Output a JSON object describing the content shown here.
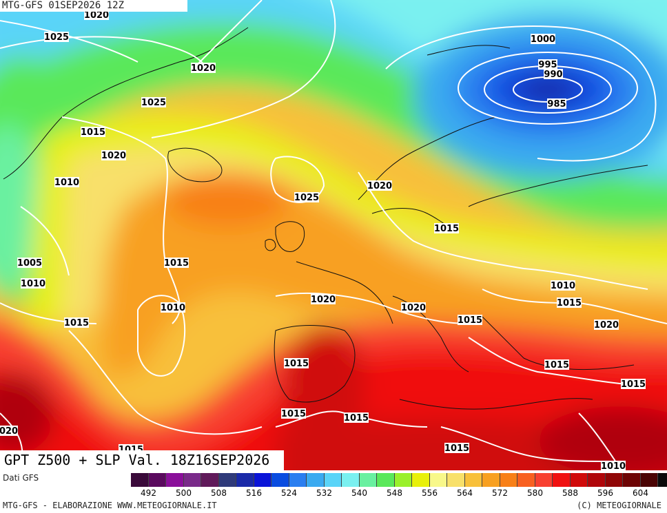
{
  "header": {
    "run_label": "MTG-GFS 01SEP2026 12Z"
  },
  "title": {
    "text": "GPT Z500 + SLP Val. 18Z16SEP2026"
  },
  "footer": {
    "source": "Dati GFS",
    "credit_left": "MTG-GFS - ELABORAZIONE WWW.METEOGIORNALE.IT",
    "credit_right": "(C) METEOGIORNALE"
  },
  "scale": {
    "colors": [
      "#3a0a3a",
      "#5a0a5e",
      "#8a0f9a",
      "#7a2a8a",
      "#601a5a",
      "#2f3a7a",
      "#1a2aa8",
      "#0a14d8",
      "#0a4ce0",
      "#2a7ef0",
      "#3aaaf0",
      "#5ad4f8",
      "#7af0f0",
      "#6af0a0",
      "#5ae85a",
      "#9af02a",
      "#e8f00a",
      "#f8f88a",
      "#f8e06a",
      "#f8c03a",
      "#f8a020",
      "#f88018",
      "#f86020",
      "#f84030",
      "#f01010",
      "#d00a0a",
      "#b0060a",
      "#900606",
      "#6e0404",
      "#4a0404",
      "#0a0a0a"
    ],
    "tick_labels": [
      "492",
      "500",
      "508",
      "516",
      "524",
      "532",
      "540",
      "548",
      "556",
      "564",
      "572",
      "580",
      "588",
      "596",
      "604"
    ]
  },
  "isobar_labels": [
    "1020",
    "1025",
    "1020",
    "1025",
    "1015",
    "1020",
    "1010",
    "1025",
    "1020",
    "1015",
    "1000",
    "995",
    "990",
    "985",
    "1005",
    "1010",
    "1015",
    "1010",
    "1020",
    "1020",
    "1015",
    "1010",
    "1015",
    "1015",
    "1020",
    "1015",
    "1015",
    "1015",
    "1015",
    "1015",
    "1020",
    "1015",
    "1010",
    "1015"
  ]
}
